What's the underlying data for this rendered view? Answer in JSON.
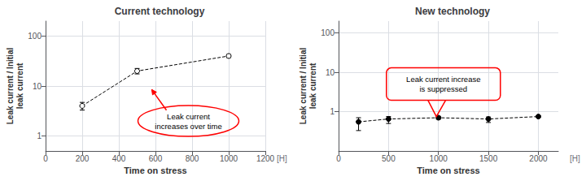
{
  "chart_data": [
    {
      "type": "line",
      "title": "Current technology",
      "xlabel": "Time on stress",
      "xunit": "[H]",
      "ylabel": "Leak current / Initial\nleak current",
      "log": "y",
      "grid": true,
      "x": [
        200,
        500,
        1000
      ],
      "values": [
        4.0,
        20.0,
        40.0
      ],
      "error_low": [
        0.7,
        2.5,
        3.0
      ],
      "error_high": [
        0.7,
        2.5,
        3.0
      ],
      "color": "black",
      "marker": "open circle",
      "line_style": "dashed",
      "xlim": [
        0,
        1200
      ],
      "xticks": [
        0,
        200,
        400,
        600,
        800,
        1000,
        1200
      ],
      "ylim": [
        0.5,
        200
      ],
      "yticks": [
        1,
        10,
        100
      ],
      "annotations": [
        {
          "text": "Leak current\nincreases over time",
          "color": "red"
        }
      ]
    },
    {
      "type": "line",
      "title": "New technology",
      "xlabel": "Time on stress",
      "xunit": "[H]",
      "ylabel": "Leak current / Initial\nleak current",
      "log": "y",
      "grid": true,
      "x": [
        200,
        500,
        1000,
        1500,
        2000
      ],
      "values": [
        0.55,
        0.65,
        0.7,
        0.65,
        0.75
      ],
      "error_low": [
        0.22,
        0.15,
        0.06,
        0.12,
        0.04
      ],
      "error_high": [
        0.15,
        0.1,
        0.06,
        0.08,
        0.04
      ],
      "color": "black",
      "marker": "filled circle",
      "line_style": "dashed",
      "xlim": [
        0,
        2200
      ],
      "xticks": [
        0,
        500,
        1000,
        1500,
        2000
      ],
      "ylim": [
        0.1,
        200
      ],
      "yticks": [
        1,
        10,
        100
      ],
      "annotations": [
        {
          "text": "Leak current increase\nis suppressed",
          "color": "red"
        }
      ]
    }
  ]
}
